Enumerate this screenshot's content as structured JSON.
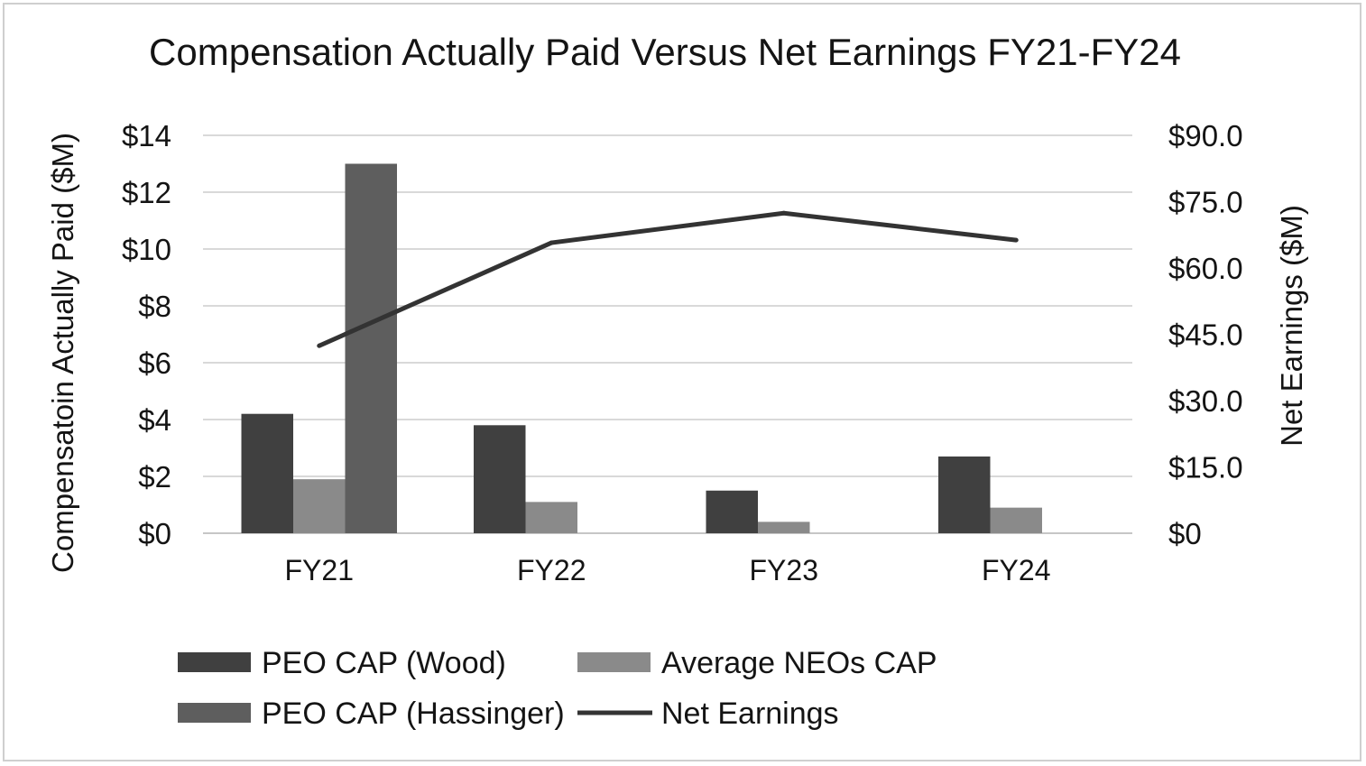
{
  "chart_data": {
    "type": "bar",
    "title": "Compensation Actually Paid Versus Net Earnings FY21-FY24",
    "categories": [
      "FY21",
      "FY22",
      "FY23",
      "FY24"
    ],
    "y_left": {
      "label": "Compensatoin Actually Paid ($M)",
      "range": [
        0,
        14
      ],
      "ticks": [
        0,
        2,
        4,
        6,
        8,
        10,
        12,
        14
      ],
      "tick_labels": [
        "$0",
        "$2",
        "$4",
        "$6",
        "$8",
        "$10",
        "$12",
        "$14"
      ]
    },
    "y_right": {
      "label": "Net Earnings ($M)",
      "range": [
        0,
        90
      ],
      "ticks": [
        0,
        15,
        30,
        45,
        60,
        75,
        90
      ],
      "tick_labels": [
        "$0",
        "$15.0",
        "$30.0",
        "$45.0",
        "$60.0",
        "$75.0",
        "$90.0"
      ]
    },
    "series": [
      {
        "name": "PEO CAP (Wood)",
        "type": "bar",
        "y_axis": "left",
        "color": "#404040",
        "values": [
          4.2,
          3.8,
          1.5,
          2.7
        ]
      },
      {
        "name": "Average NEOs CAP",
        "type": "bar",
        "y_axis": "left",
        "color": "#8a8a8a",
        "values": [
          1.9,
          1.1,
          0.4,
          0.9
        ]
      },
      {
        "name": "PEO CAP (Hassinger)",
        "type": "bar",
        "y_axis": "left",
        "color": "#5e5e5e",
        "values": [
          13.0,
          null,
          null,
          null
        ]
      },
      {
        "name": "Net Earnings",
        "type": "line",
        "y_axis": "right",
        "color": "#333333",
        "values": [
          42.4,
          65.7,
          72.4,
          66.3
        ]
      }
    ],
    "grid": true,
    "legend": "bottom"
  }
}
